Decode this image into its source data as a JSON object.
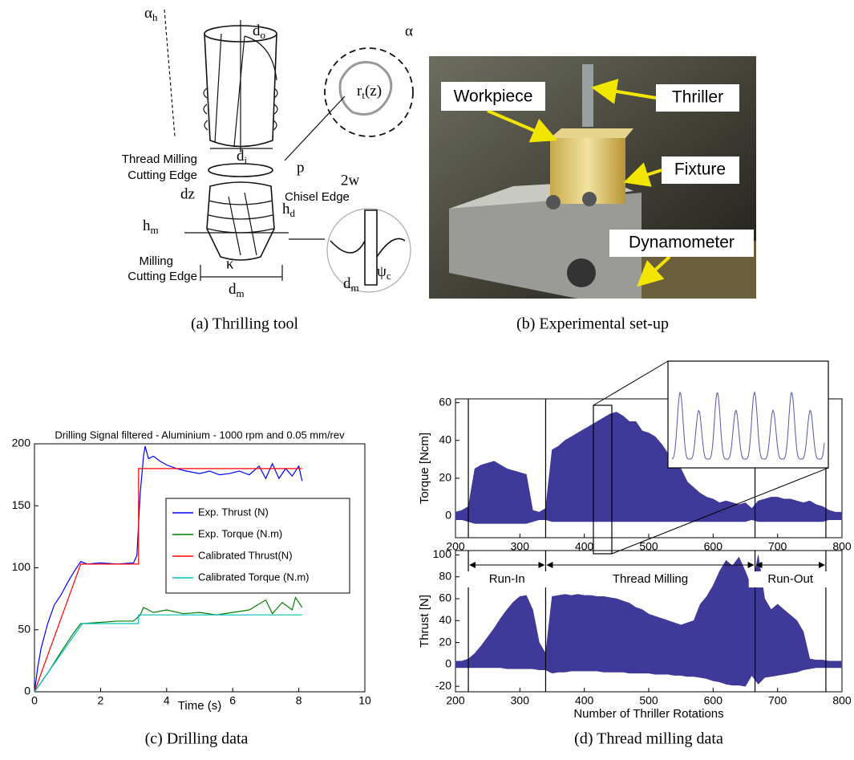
{
  "figure": {
    "captions": [
      "(a) Thrilling tool",
      "(b) Experimental set-up",
      "(c) Drilling data",
      "(d) Thread milling data"
    ],
    "diagram_labels": [
      {
        "text": "α",
        "sub": "h"
      },
      {
        "text": "d",
        "sub": "o"
      },
      {
        "text": "Thread Milling"
      },
      {
        "text": "Cutting Edge"
      },
      {
        "text": "p"
      },
      {
        "text": "r",
        "sub": "t",
        "tail": "(z)"
      },
      {
        "text": "α"
      },
      {
        "text": "d",
        "sub": "i"
      },
      {
        "text": "dz"
      },
      {
        "text": "2w"
      },
      {
        "text": "Chisel Edge"
      },
      {
        "text": "h",
        "sub": "d"
      },
      {
        "text": "h",
        "sub": "m"
      },
      {
        "text": "Milling"
      },
      {
        "text": "Cutting Edge"
      },
      {
        "text": "κ"
      },
      {
        "text": "ψ",
        "sub": "c"
      },
      {
        "text": "d",
        "sub": "m"
      },
      {
        "text": "d",
        "sub": "m"
      }
    ],
    "photo_labels": [
      "Workpiece",
      "Thriller",
      "Fixture",
      "Dynamometer"
    ]
  },
  "chart_data": [
    {
      "type": "line",
      "title": "Drilling Signal filtered - Aluminium - 1000 rpm and 0.05 mm/rev",
      "x_label": "Time (s)",
      "xlim": [
        0,
        10
      ],
      "xticks": [
        0,
        2,
        4,
        6,
        8,
        10
      ],
      "ylim": [
        0,
        200
      ],
      "yticks": [
        0,
        50,
        100,
        150,
        200
      ],
      "legend": "center-right",
      "series": [
        {
          "name": "Exp. Thrust (N)",
          "color": "#0000ff",
          "x": [
            0,
            0.1,
            0.2,
            0.4,
            0.6,
            0.8,
            1.0,
            1.2,
            1.4,
            1.6,
            2.0,
            2.5,
            3.0,
            3.1,
            3.2,
            3.3,
            3.35,
            3.45,
            3.6,
            3.8,
            4.0,
            4.3,
            4.6,
            5.0,
            5.3,
            5.6,
            5.9,
            6.2,
            6.5,
            6.8,
            7.0,
            7.2,
            7.4,
            7.6,
            7.8,
            8.0,
            8.1
          ],
          "values": [
            0,
            20,
            35,
            55,
            70,
            78,
            88,
            97,
            105,
            103,
            104,
            103,
            104,
            110,
            160,
            190,
            198,
            188,
            190,
            186,
            183,
            180,
            178,
            176,
            178,
            175,
            176,
            178,
            175,
            182,
            172,
            184,
            172,
            180,
            174,
            182,
            170
          ]
        },
        {
          "name": "Exp. Torque (N.m)",
          "color": "#008000",
          "x": [
            0,
            0.4,
            0.8,
            1.2,
            1.4,
            2.0,
            2.5,
            3.0,
            3.2,
            3.3,
            3.6,
            4.0,
            4.5,
            5.0,
            5.5,
            6.0,
            6.5,
            7.0,
            7.2,
            7.5,
            7.8,
            7.9,
            8.1
          ],
          "values": [
            0,
            15,
            32,
            48,
            55,
            56,
            57,
            57,
            62,
            68,
            64,
            66,
            63,
            64,
            62,
            64,
            66,
            74,
            63,
            72,
            66,
            76,
            68
          ]
        },
        {
          "name": "Calibrated Thrust(N)",
          "color": "#ff0000",
          "x": [
            0,
            1.4,
            3.15,
            3.15,
            8.1
          ],
          "values": [
            0,
            103,
            103,
            180,
            180
          ]
        },
        {
          "name": "Calibrated Torque (N.m)",
          "color": "#00bfbf",
          "x": [
            0,
            1.45,
            3.15,
            3.15,
            8.1
          ],
          "values": [
            0,
            55,
            55,
            62,
            62
          ]
        }
      ]
    },
    {
      "type": "area",
      "y_label": "Torque [Ncm]",
      "color": "#3f3a99",
      "xlim": [
        200,
        800
      ],
      "xticks": [
        200,
        300,
        400,
        500,
        600,
        700,
        800
      ],
      "ylim": [
        -11.5,
        62
      ],
      "yticks": [
        0,
        20,
        40,
        60
      ],
      "vlines": [
        220,
        340,
        665,
        775
      ],
      "x": [
        200,
        210,
        220,
        230,
        240,
        250,
        260,
        270,
        280,
        290,
        300,
        310,
        320,
        330,
        340,
        350,
        360,
        370,
        380,
        390,
        400,
        410,
        420,
        430,
        440,
        450,
        460,
        470,
        480,
        490,
        500,
        510,
        520,
        530,
        540,
        550,
        560,
        570,
        580,
        590,
        600,
        610,
        620,
        630,
        640,
        650,
        660,
        670,
        680,
        690,
        700,
        710,
        720,
        730,
        740,
        750,
        760,
        770,
        780,
        790,
        800
      ],
      "upper": [
        2,
        3,
        5,
        25,
        27,
        28,
        29,
        27,
        25,
        24,
        23,
        22,
        3,
        2,
        4,
        35,
        37,
        40,
        42,
        44,
        46,
        48,
        50,
        52,
        54,
        55,
        53,
        50,
        50,
        45,
        44,
        42,
        38,
        33,
        30,
        25,
        18,
        15,
        12,
        10,
        9,
        7,
        8,
        7,
        6,
        7,
        4,
        8,
        9,
        10,
        10,
        9,
        9,
        8,
        7,
        8,
        6,
        5,
        3,
        2,
        2
      ],
      "lower": [
        -2,
        -2,
        -3,
        -4,
        -4,
        -4,
        -4,
        -4,
        -4,
        -4,
        -4,
        -4,
        -3,
        -2,
        -2,
        -3,
        -3,
        -3,
        -3,
        -3,
        -3,
        -3,
        -3,
        -3,
        -3,
        -3,
        -3,
        -3,
        -3,
        -3,
        -3,
        -3,
        -3,
        -3,
        -3,
        -3,
        -3,
        -3,
        -3,
        -3,
        -3,
        -3,
        -3,
        -3,
        -3,
        -3,
        -2,
        -3,
        -3,
        -3,
        -3,
        -3,
        -3,
        -3,
        -3,
        -3,
        -3,
        -3,
        -2,
        -2,
        -2
      ]
    },
    {
      "type": "area",
      "y_label": "Thrust [N]",
      "x_label": "Number of Thriller Rotations",
      "color": "#3f3a99",
      "xlim": [
        200,
        800
      ],
      "xticks": [
        200,
        300,
        400,
        500,
        600,
        700,
        800
      ],
      "ylim": [
        -25,
        104
      ],
      "yticks": [
        -20,
        0,
        20,
        40,
        60,
        80,
        100
      ],
      "vlines": [
        220,
        340,
        665,
        775
      ],
      "annotations": [
        "Run-In",
        "Thread Milling",
        "Run-Out"
      ],
      "x": [
        200,
        210,
        220,
        230,
        240,
        250,
        260,
        270,
        280,
        290,
        300,
        310,
        320,
        330,
        340,
        350,
        360,
        370,
        380,
        390,
        400,
        410,
        420,
        430,
        440,
        450,
        460,
        470,
        480,
        490,
        500,
        510,
        520,
        530,
        540,
        550,
        560,
        570,
        580,
        590,
        600,
        610,
        620,
        630,
        640,
        650,
        660,
        670,
        680,
        690,
        700,
        710,
        720,
        730,
        740,
        750,
        760,
        770,
        780,
        790,
        800
      ],
      "upper": [
        3,
        3,
        5,
        10,
        17,
        25,
        33,
        42,
        50,
        57,
        62,
        63,
        50,
        20,
        10,
        62,
        63,
        64,
        63,
        64,
        63,
        63,
        62,
        62,
        61,
        60,
        58,
        56,
        52,
        50,
        46,
        44,
        42,
        40,
        38,
        36,
        38,
        40,
        55,
        62,
        72,
        85,
        95,
        90,
        98,
        85,
        70,
        100,
        60,
        50,
        55,
        50,
        45,
        40,
        30,
        5,
        4,
        4,
        3,
        3,
        3
      ],
      "lower": [
        -3,
        -3,
        -3,
        -3,
        -3,
        -3,
        -3,
        -3,
        -4,
        -4,
        -4,
        -4,
        -4,
        -5,
        -5,
        -8,
        -7,
        -7,
        -6,
        -6,
        -6,
        -6,
        -6,
        -7,
        -7,
        -7,
        -7,
        -8,
        -8,
        -8,
        -8,
        -9,
        -9,
        -9,
        -10,
        -10,
        -11,
        -11,
        -12,
        -13,
        -15,
        -16,
        -18,
        -19,
        -19,
        -20,
        -10,
        -18,
        -12,
        -11,
        -10,
        -9,
        -8,
        -7,
        -5,
        -4,
        -3,
        -3,
        -3,
        -3,
        -3
      ]
    }
  ]
}
